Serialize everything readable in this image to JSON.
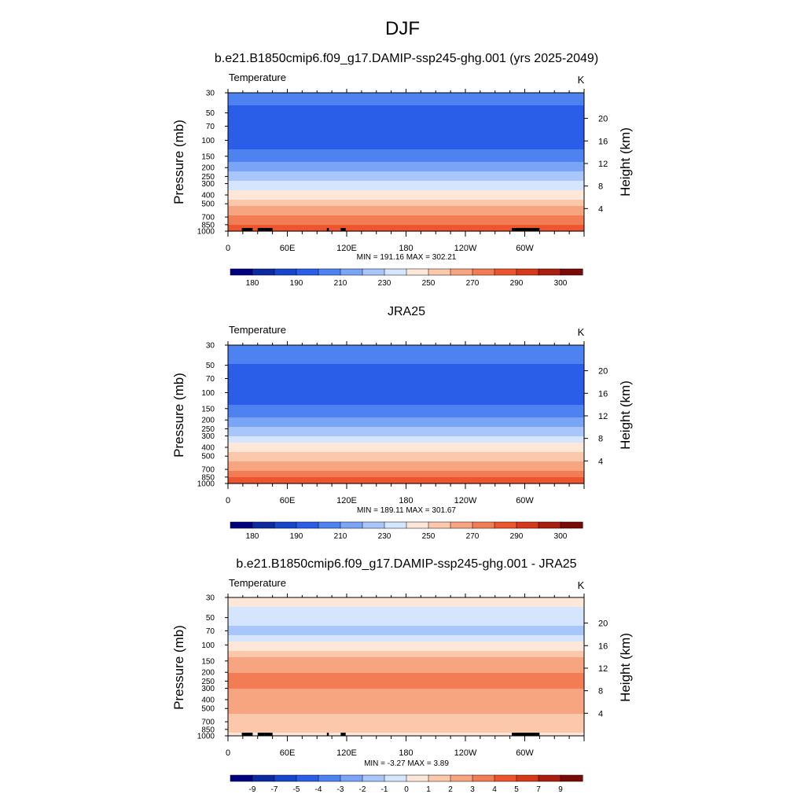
{
  "main_title": "DJF",
  "colors": {
    "abs_scale": [
      "#00007f",
      "#0a2a9e",
      "#1746cc",
      "#2a5ee8",
      "#4d82f0",
      "#7aa5f7",
      "#a9c6fb",
      "#d5e5fd",
      "#fde7d8",
      "#fbc8ac",
      "#f7a580",
      "#f27d55",
      "#ec5530",
      "#d6381a",
      "#a91e0e",
      "#7a0a05"
    ],
    "diff_scale": [
      "#00007f",
      "#0a2a9e",
      "#1746cc",
      "#2a5ee8",
      "#4d82f0",
      "#7aa5f7",
      "#a9c6fb",
      "#d5e5fd",
      "#fde7d8",
      "#fbc8ac",
      "#f7a580",
      "#f27d55",
      "#ec5530",
      "#d6381a",
      "#a91e0e",
      "#7a0a05"
    ],
    "topography": "#000000"
  },
  "chart_data": [
    {
      "type": "heatmap",
      "title": "b.e21.B1850cmip6.f09_g17.DAMIP-ssp245-ghg.001 (yrs 2025-2049)",
      "variable": "Temperature",
      "units": "K",
      "ylabel": "Pressure (mb)",
      "ylabel_right": "Height (km)",
      "x_ticks": [
        "0",
        "60E",
        "120E",
        "180",
        "120W",
        "60W"
      ],
      "x_tick_lon": [
        0,
        60,
        120,
        180,
        240,
        300
      ],
      "x_range": [
        0,
        360
      ],
      "pressure_levels": [
        30,
        50,
        70,
        100,
        150,
        200,
        250,
        300,
        400,
        500,
        700,
        850,
        1000
      ],
      "height_ticks": [
        20,
        16,
        12,
        8,
        4
      ],
      "stats": "MIN = 191.16  MAX = 302.21",
      "colorbar_labels": [
        "180",
        "190",
        "210",
        "230",
        "250",
        "270",
        "290",
        "300"
      ],
      "field": {
        "kind": "abs",
        "profile": [
          [
            30,
            205
          ],
          [
            50,
            197
          ],
          [
            70,
            193
          ],
          [
            100,
            194
          ],
          [
            150,
            205
          ],
          [
            200,
            217
          ],
          [
            250,
            225
          ],
          [
            300,
            232
          ],
          [
            400,
            246
          ],
          [
            500,
            256
          ],
          [
            700,
            272
          ],
          [
            850,
            280
          ],
          [
            1000,
            290
          ]
        ]
      },
      "topography": [
        [
          14,
          25
        ],
        [
          30,
          37
        ],
        [
          37,
          45
        ],
        [
          100,
          102
        ],
        [
          114,
          119
        ],
        [
          287,
          315
        ]
      ]
    },
    {
      "type": "heatmap",
      "title": "JRA25",
      "variable": "Temperature",
      "units": "K",
      "ylabel": "Pressure (mb)",
      "ylabel_right": "Height (km)",
      "x_ticks": [
        "0",
        "60E",
        "120E",
        "180",
        "120W",
        "60W"
      ],
      "x_tick_lon": [
        0,
        60,
        120,
        180,
        240,
        300
      ],
      "x_range": [
        0,
        360
      ],
      "pressure_levels": [
        30,
        50,
        70,
        100,
        150,
        200,
        250,
        300,
        400,
        500,
        700,
        850,
        1000
      ],
      "height_ticks": [
        20,
        16,
        12,
        8,
        4
      ],
      "stats": "MIN = 189.11  MAX = 301.67",
      "colorbar_labels": [
        "180",
        "190",
        "210",
        "230",
        "250",
        "270",
        "290",
        "300"
      ],
      "field": {
        "kind": "abs",
        "profile": [
          [
            30,
            207
          ],
          [
            50,
            200
          ],
          [
            70,
            196
          ],
          [
            100,
            194
          ],
          [
            150,
            202
          ],
          [
            200,
            213
          ],
          [
            250,
            222
          ],
          [
            300,
            230
          ],
          [
            400,
            244
          ],
          [
            500,
            254
          ],
          [
            700,
            270
          ],
          [
            850,
            279
          ],
          [
            1000,
            289
          ]
        ]
      },
      "topography": []
    },
    {
      "type": "heatmap",
      "title": "b.e21.B1850cmip6.f09_g17.DAMIP-ssp245-ghg.001 - JRA25",
      "variable": "Temperature",
      "units": "K",
      "ylabel": "Pressure (mb)",
      "ylabel_right": "Height (km)",
      "x_ticks": [
        "0",
        "60E",
        "120E",
        "180",
        "120W",
        "60W"
      ],
      "x_tick_lon": [
        0,
        60,
        120,
        180,
        240,
        300
      ],
      "x_range": [
        0,
        360
      ],
      "pressure_levels": [
        30,
        50,
        70,
        100,
        150,
        200,
        250,
        300,
        400,
        500,
        700,
        850,
        1000
      ],
      "height_ticks": [
        20,
        16,
        12,
        8,
        4
      ],
      "stats": "MIN =  -3.27  MAX =   3.89",
      "colorbar_labels": [
        "-9",
        "-7",
        "-5",
        "-4",
        "-3",
        "-2",
        "-1",
        "0",
        "1",
        "2",
        "3",
        "4",
        "5",
        "7",
        "9"
      ],
      "field": {
        "kind": "diff",
        "profile": [
          [
            30,
            0.5
          ],
          [
            50,
            -0.5
          ],
          [
            70,
            -1.5
          ],
          [
            100,
            0.5
          ],
          [
            150,
            2.3
          ],
          [
            200,
            3.0
          ],
          [
            250,
            3.1
          ],
          [
            300,
            3.0
          ],
          [
            400,
            2.7
          ],
          [
            500,
            2.3
          ],
          [
            700,
            1.5
          ],
          [
            850,
            1.3
          ],
          [
            1000,
            0.8
          ]
        ]
      },
      "topography": [
        [
          14,
          25
        ],
        [
          30,
          37
        ],
        [
          37,
          45
        ],
        [
          100,
          102
        ],
        [
          114,
          119
        ],
        [
          287,
          315
        ]
      ]
    }
  ]
}
